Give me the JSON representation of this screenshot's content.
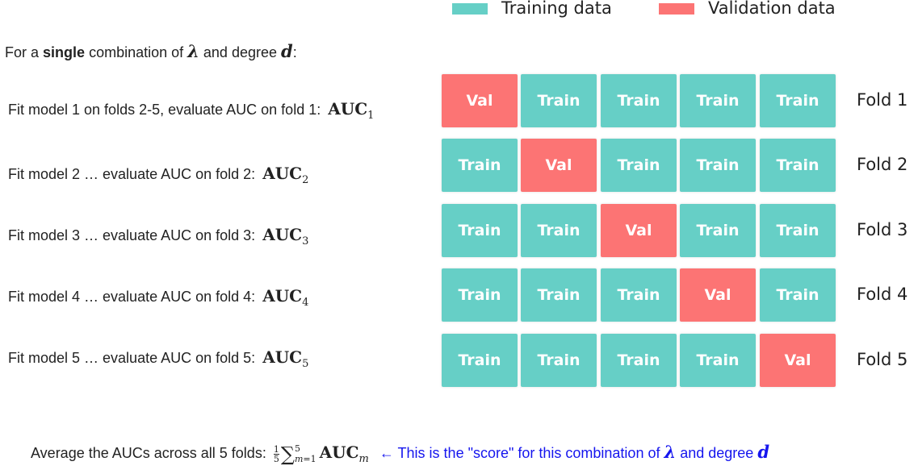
{
  "legend": {
    "training": {
      "label": "Training data",
      "color": "#66cfc6"
    },
    "validation": {
      "label": "Validation data",
      "color": "#fc7474"
    }
  },
  "intro": {
    "prefix": "For a",
    "bold": "single",
    "middle": "combination of",
    "lambda": "λ",
    "and": "and degree",
    "d": "d",
    "suffix": ":"
  },
  "steps": [
    {
      "text": "Fit model 1 on folds 2-5, evaluate AUC on fold 1:",
      "metric": "AUC",
      "sub": "1"
    },
    {
      "text": "Fit model 2 … evaluate AUC on fold 2:",
      "metric": "AUC",
      "sub": "2"
    },
    {
      "text": "Fit model 3 … evaluate AUC on fold 3:",
      "metric": "AUC",
      "sub": "3"
    },
    {
      "text": "Fit model 4 … evaluate AUC on fold 4:",
      "metric": "AUC",
      "sub": "4"
    },
    {
      "text": "Fit model 5 … evaluate AUC on fold 5:",
      "metric": "AUC",
      "sub": "5"
    }
  ],
  "grid": {
    "train_label": "Train",
    "val_label": "Val",
    "folds": [
      {
        "label": "Fold 1",
        "val_index": 0
      },
      {
        "label": "Fold 2",
        "val_index": 1
      },
      {
        "label": "Fold 3",
        "val_index": 2
      },
      {
        "label": "Fold 4",
        "val_index": 3
      },
      {
        "label": "Fold 5",
        "val_index": 4
      }
    ]
  },
  "bottom": {
    "text": "Average the AUCs across all 5 folds:",
    "frac_num": "1",
    "frac_den": "5",
    "sum_symbol": "∑",
    "sum_upper": "5",
    "sum_lower_var": "m",
    "sum_lower_rest": "=1",
    "metric": "AUC",
    "metric_sub": "m",
    "note": "← This is the \"score\" for this combination of",
    "note_lambda": "λ",
    "note_and": "and degree",
    "note_d": "d"
  }
}
